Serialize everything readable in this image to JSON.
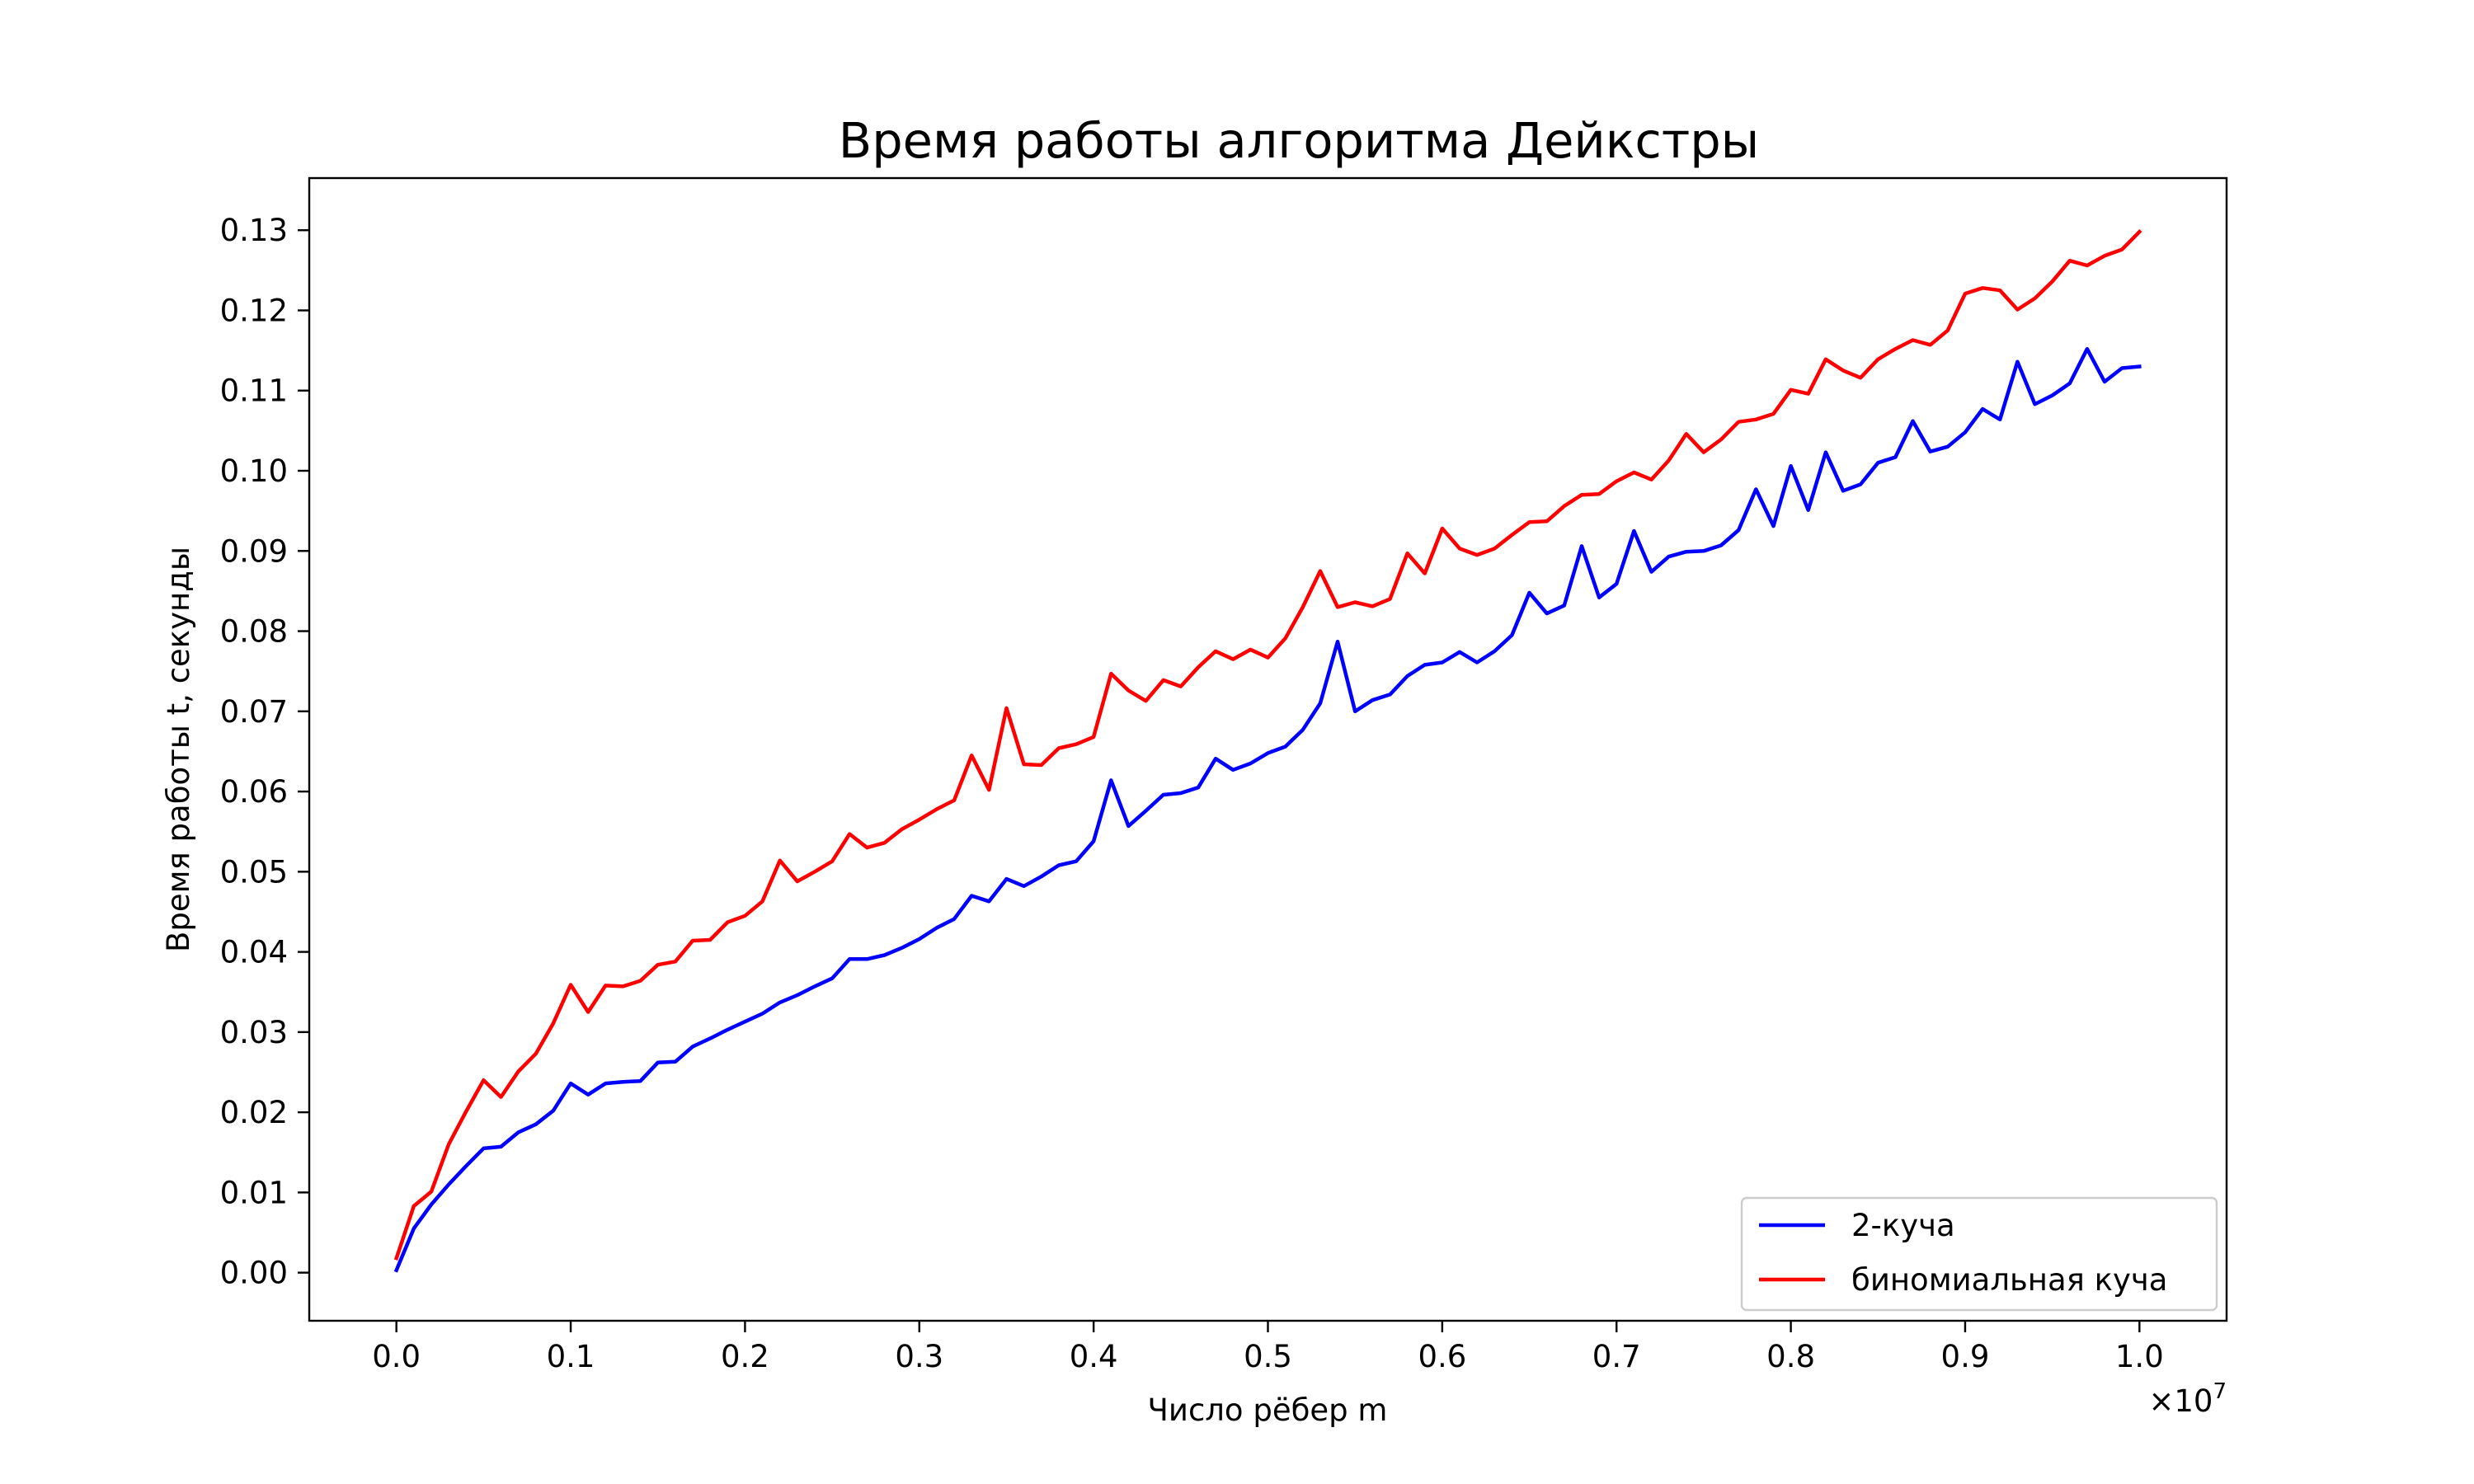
{
  "chart_data": {
    "type": "line",
    "title": "Время работы алгоритма Дейкстры",
    "xlabel": "Число рёбер m",
    "ylabel": "Время работы t, секунды",
    "x_offset_label": "×10",
    "x_offset_exponent": "7",
    "xlim": [
      -0.05,
      1.05
    ],
    "ylim": [
      -0.006,
      0.1365
    ],
    "x_ticks": [
      0.0,
      0.1,
      0.2,
      0.3,
      0.4,
      0.5,
      0.6,
      0.7,
      0.8,
      0.9,
      1.0
    ],
    "x_tick_labels": [
      "0.0",
      "0.1",
      "0.2",
      "0.3",
      "0.4",
      "0.5",
      "0.6",
      "0.7",
      "0.8",
      "0.9",
      "1.0"
    ],
    "y_ticks": [
      0.0,
      0.01,
      0.02,
      0.03,
      0.04,
      0.05,
      0.06,
      0.07,
      0.08,
      0.09,
      0.1,
      0.11,
      0.12,
      0.13
    ],
    "y_tick_labels": [
      "0.00",
      "0.01",
      "0.02",
      "0.03",
      "0.04",
      "0.05",
      "0.06",
      "0.07",
      "0.08",
      "0.09",
      "0.10",
      "0.11",
      "0.12",
      "0.13"
    ],
    "grid": false,
    "legend_position": "lower right",
    "x": [
      0.0,
      0.01,
      0.02,
      0.03,
      0.04,
      0.05,
      0.06,
      0.07,
      0.08,
      0.09,
      0.1,
      0.11,
      0.12,
      0.13,
      0.14,
      0.15,
      0.16,
      0.17,
      0.18,
      0.19,
      0.2,
      0.21,
      0.22,
      0.23,
      0.24,
      0.25,
      0.26,
      0.27,
      0.28,
      0.29,
      0.3,
      0.31,
      0.32,
      0.33,
      0.34,
      0.35,
      0.36,
      0.37,
      0.38,
      0.39,
      0.4,
      0.41,
      0.42,
      0.43,
      0.44,
      0.45,
      0.46,
      0.47,
      0.48,
      0.49,
      0.5,
      0.51,
      0.52,
      0.53,
      0.54,
      0.55,
      0.56,
      0.57,
      0.58,
      0.59,
      0.6,
      0.61,
      0.62,
      0.63,
      0.64,
      0.65,
      0.66,
      0.67,
      0.68,
      0.69,
      0.7,
      0.71,
      0.72,
      0.73,
      0.74,
      0.75,
      0.76,
      0.77,
      0.78,
      0.79,
      0.8,
      0.81,
      0.82,
      0.83,
      0.84,
      0.85,
      0.86,
      0.87,
      0.88,
      0.89,
      0.9,
      0.91,
      0.92,
      0.93,
      0.94,
      0.95,
      0.96,
      0.97,
      0.98,
      0.99,
      1.0
    ],
    "series": [
      {
        "name": "2-куча",
        "color": "#0000ff",
        "values": [
          0.0003,
          0.0055,
          0.0085,
          0.011,
          0.0133,
          0.0155,
          0.0157,
          0.0175,
          0.0185,
          0.0202,
          0.0236,
          0.0222,
          0.0236,
          0.0238,
          0.0239,
          0.0262,
          0.0263,
          0.0282,
          0.0292,
          0.0303,
          0.0313,
          0.0323,
          0.0337,
          0.0346,
          0.0357,
          0.0367,
          0.0391,
          0.0391,
          0.0396,
          0.0405,
          0.0416,
          0.043,
          0.0441,
          0.047,
          0.0463,
          0.0491,
          0.0482,
          0.0494,
          0.0508,
          0.0513,
          0.0538,
          0.0614,
          0.0557,
          0.0576,
          0.0596,
          0.0598,
          0.0605,
          0.0641,
          0.0627,
          0.0635,
          0.0648,
          0.0656,
          0.0677,
          0.071,
          0.0787,
          0.07,
          0.0714,
          0.0721,
          0.0744,
          0.0758,
          0.0761,
          0.0774,
          0.0761,
          0.0775,
          0.0795,
          0.0848,
          0.0822,
          0.0832,
          0.0906,
          0.0842,
          0.0859,
          0.0925,
          0.0874,
          0.0893,
          0.0899,
          0.09,
          0.0907,
          0.0926,
          0.0977,
          0.0931,
          0.1006,
          0.0951,
          0.1023,
          0.0975,
          0.0983,
          0.101,
          0.1017,
          0.1062,
          0.1024,
          0.103,
          0.1048,
          0.1077,
          0.1064,
          0.1136,
          0.1083,
          0.1094,
          0.1109,
          0.1152,
          0.1111,
          0.1128,
          0.113
        ]
      },
      {
        "name": "биномиальная куча",
        "color": "#ff0000",
        "values": [
          0.0018,
          0.0083,
          0.0101,
          0.016,
          0.0201,
          0.024,
          0.0219,
          0.0251,
          0.0273,
          0.0311,
          0.0359,
          0.0325,
          0.0358,
          0.0357,
          0.0364,
          0.0384,
          0.0388,
          0.0414,
          0.0415,
          0.0437,
          0.0445,
          0.0463,
          0.0514,
          0.0488,
          0.05,
          0.0513,
          0.0547,
          0.053,
          0.0536,
          0.0553,
          0.0565,
          0.0578,
          0.0589,
          0.0645,
          0.0602,
          0.0704,
          0.0634,
          0.0633,
          0.0654,
          0.0659,
          0.0668,
          0.0747,
          0.0726,
          0.0713,
          0.0739,
          0.0731,
          0.0755,
          0.0775,
          0.0765,
          0.0777,
          0.0767,
          0.0791,
          0.083,
          0.0875,
          0.083,
          0.0836,
          0.0831,
          0.084,
          0.0897,
          0.0872,
          0.0928,
          0.0903,
          0.0895,
          0.0903,
          0.092,
          0.0936,
          0.0937,
          0.0956,
          0.097,
          0.0971,
          0.0987,
          0.0998,
          0.0989,
          0.1013,
          0.1046,
          0.1023,
          0.1039,
          0.1061,
          0.1064,
          0.1071,
          0.1101,
          0.1096,
          0.1139,
          0.1125,
          0.1116,
          0.1139,
          0.1152,
          0.1163,
          0.1157,
          0.1175,
          0.1221,
          0.1228,
          0.1225,
          0.1201,
          0.1215,
          0.1236,
          0.1262,
          0.1256,
          0.1268,
          0.1276,
          0.1298
        ]
      }
    ]
  }
}
